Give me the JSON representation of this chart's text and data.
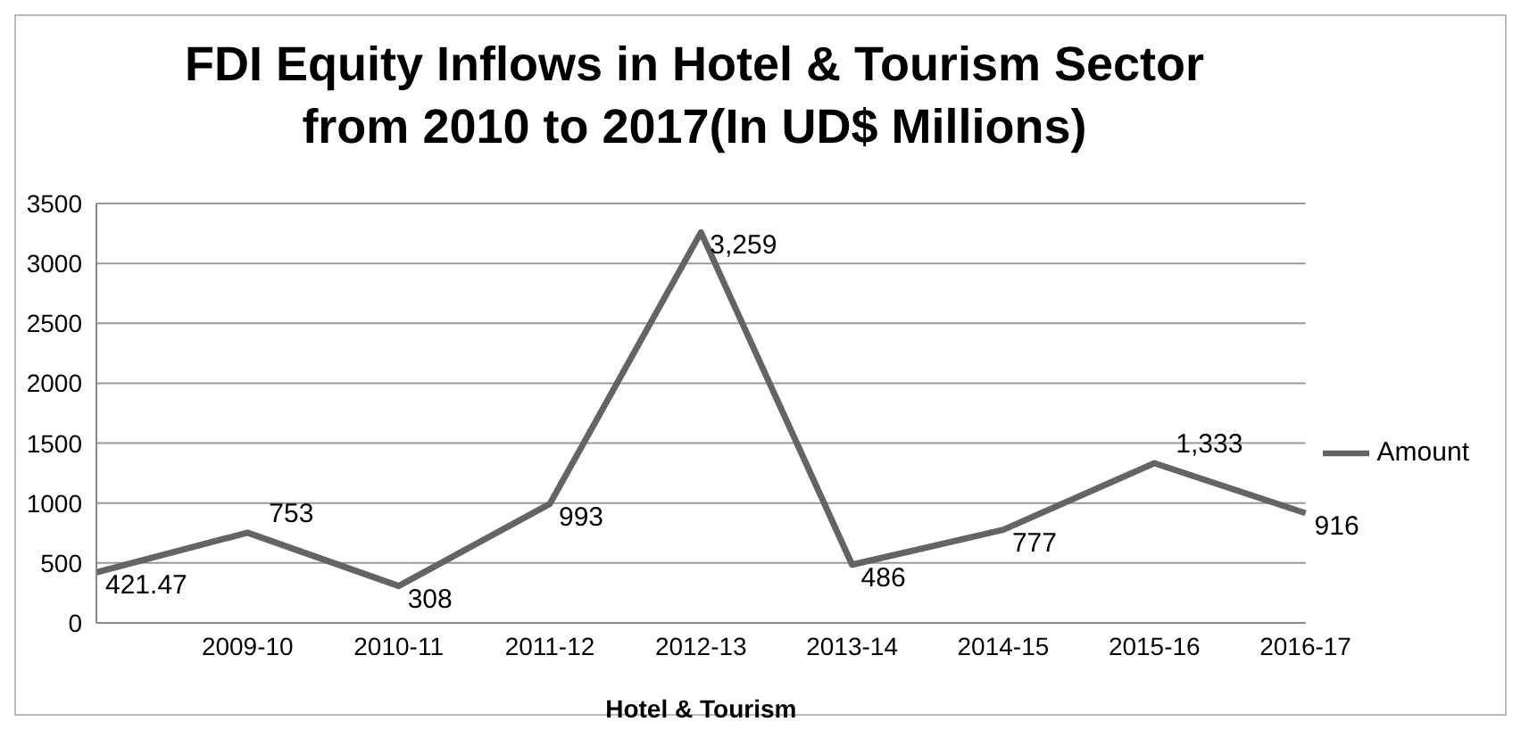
{
  "chart_data": {
    "type": "line",
    "title": "FDI Equity Inflows in Hotel & Tourism Sector from 2010 to 2017(In UD$ Millions)",
    "xlabel": "Hotel & Tourism",
    "categories": [
      null,
      "2009-10",
      "2010-11",
      "2011-12",
      "2012-13",
      "2013-14",
      "2014-15",
      "2015-16",
      "2016-17"
    ],
    "series": [
      {
        "name": "Amount",
        "color": "#646464",
        "values": [
          421.47,
          753,
          308,
          993,
          3259,
          486,
          777,
          1333,
          916
        ],
        "value_labels": [
          "421.47",
          "753",
          "308",
          "993",
          "3,259",
          "486",
          "777",
          "1,333",
          "916"
        ]
      }
    ],
    "ylim": [
      0,
      3500
    ],
    "yticks": [
      0,
      500,
      1000,
      1500,
      2000,
      2500,
      3000,
      3500
    ],
    "grid": "y",
    "legend": "right",
    "marker": "none",
    "line_style": "solid"
  }
}
